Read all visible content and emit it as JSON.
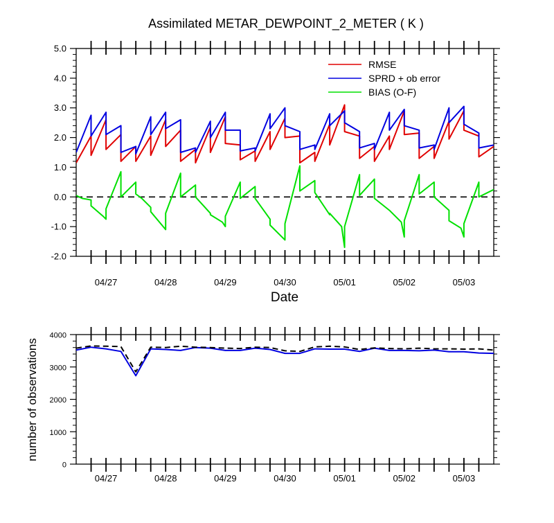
{
  "chart_data": [
    {
      "type": "line",
      "title": "Assimilated METAR_DEWPOINT_2_METER ( K )",
      "xlabel": "Date",
      "ylabel": "",
      "x_tick_labels": [
        "04/27",
        "04/28",
        "04/29",
        "04/30",
        "05/01",
        "05/02",
        "05/03"
      ],
      "x_tick_days": [
        1,
        2,
        3,
        4,
        5,
        6,
        7
      ],
      "xlim_days": [
        0.0,
        7.0
      ],
      "ylim": [
        -2.0,
        5.0
      ],
      "y_tick_labels": [
        "-2.0",
        "-1.0",
        "0.0",
        "1.0",
        "2.0",
        "3.0",
        "4.0",
        "5.0"
      ],
      "zero_reference_line": "dashed black at 0.0",
      "legend": {
        "placement": "top-right"
      },
      "series": [
        {
          "name": "RMSE",
          "color": "#e00000",
          "x_days": [
            0.0,
            0.25,
            0.25,
            0.5,
            0.5,
            0.75,
            0.75,
            1.0,
            1.0,
            1.25,
            1.25,
            1.5,
            1.5,
            1.75,
            1.75,
            2.0,
            2.0,
            2.25,
            2.25,
            2.5,
            2.5,
            2.75,
            2.75,
            3.0,
            3.0,
            3.25,
            3.25,
            3.5,
            3.5,
            3.75,
            3.75,
            4.0,
            4.0,
            4.25,
            4.25,
            4.5,
            4.5,
            4.75,
            4.75,
            5.0,
            5.0,
            5.25,
            5.25,
            5.5,
            5.5,
            5.75,
            5.75,
            6.0,
            6.0,
            6.25,
            6.25,
            6.5,
            6.5,
            6.75,
            6.75,
            7.0
          ],
          "values": [
            1.15,
            2.05,
            1.4,
            2.6,
            1.6,
            2.1,
            1.2,
            1.7,
            1.2,
            2.05,
            1.4,
            2.6,
            1.7,
            2.25,
            1.2,
            1.6,
            1.15,
            2.35,
            1.5,
            2.7,
            1.8,
            1.75,
            1.25,
            1.55,
            1.2,
            2.2,
            1.6,
            2.65,
            2.0,
            2.05,
            1.15,
            1.5,
            1.2,
            2.45,
            1.75,
            3.1,
            2.2,
            2.05,
            1.3,
            1.7,
            1.2,
            2.05,
            1.6,
            2.9,
            2.1,
            2.15,
            1.3,
            1.7,
            1.3,
            2.55,
            1.95,
            2.9,
            2.25,
            2.05,
            1.35,
            1.7
          ]
        },
        {
          "name": "SPRD + ob error",
          "color": "#0000e0",
          "x_days": [
            0.0,
            0.25,
            0.25,
            0.5,
            0.5,
            0.75,
            0.75,
            1.0,
            1.0,
            1.25,
            1.25,
            1.5,
            1.5,
            1.75,
            1.75,
            2.0,
            2.0,
            2.25,
            2.25,
            2.5,
            2.5,
            2.75,
            2.75,
            3.0,
            3.0,
            3.25,
            3.25,
            3.5,
            3.5,
            3.75,
            3.75,
            4.0,
            4.0,
            4.25,
            4.25,
            4.5,
            4.5,
            4.75,
            4.75,
            5.0,
            5.0,
            5.25,
            5.25,
            5.5,
            5.5,
            5.75,
            5.75,
            6.0,
            6.0,
            6.25,
            6.25,
            6.5,
            6.5,
            6.75,
            6.75,
            7.0
          ],
          "values": [
            1.5,
            2.75,
            2.05,
            2.85,
            2.1,
            2.4,
            1.5,
            1.7,
            1.45,
            2.7,
            2.1,
            2.85,
            2.3,
            2.6,
            1.5,
            1.65,
            1.5,
            2.55,
            2.0,
            2.85,
            2.25,
            2.25,
            1.55,
            1.65,
            1.55,
            2.8,
            2.3,
            3.0,
            2.4,
            2.2,
            1.6,
            1.75,
            1.6,
            2.8,
            2.4,
            2.9,
            2.5,
            2.2,
            1.65,
            1.8,
            1.6,
            2.85,
            2.25,
            2.95,
            2.4,
            2.25,
            1.65,
            1.75,
            1.6,
            3.0,
            2.5,
            3.05,
            2.45,
            2.15,
            1.65,
            1.75
          ]
        },
        {
          "name": "BIAS (O-F)",
          "color": "#00e000",
          "x_days": [
            0.0,
            0.1,
            0.25,
            0.25,
            0.45,
            0.5,
            0.5,
            0.75,
            0.75,
            1.0,
            1.0,
            1.1,
            1.25,
            1.25,
            1.5,
            1.5,
            1.75,
            1.75,
            2.0,
            2.0,
            2.25,
            2.25,
            2.45,
            2.5,
            2.5,
            2.75,
            2.75,
            3.0,
            3.0,
            3.25,
            3.25,
            3.5,
            3.5,
            3.75,
            3.75,
            4.0,
            4.0,
            4.25,
            4.25,
            4.45,
            4.5,
            4.5,
            4.75,
            4.75,
            5.0,
            5.0,
            5.25,
            5.25,
            5.45,
            5.5,
            5.5,
            5.75,
            5.75,
            6.0,
            6.0,
            6.25,
            6.25,
            6.45,
            6.5,
            6.5,
            6.75,
            6.75,
            7.0
          ],
          "values": [
            0.05,
            -0.05,
            -0.1,
            -0.3,
            -0.65,
            -0.75,
            -0.4,
            0.85,
            0.0,
            0.5,
            0.1,
            -0.05,
            -0.35,
            -0.5,
            -1.1,
            -0.55,
            0.8,
            0.0,
            0.4,
            0.0,
            -0.55,
            -0.6,
            -0.85,
            -1.0,
            -0.65,
            0.5,
            -0.05,
            0.35,
            -0.05,
            -0.75,
            -0.95,
            -1.45,
            -0.9,
            1.05,
            0.2,
            0.55,
            0.15,
            -0.6,
            -0.55,
            -1.0,
            -1.7,
            -1.0,
            0.75,
            0.05,
            0.6,
            -0.05,
            -0.45,
            -0.45,
            -0.85,
            -1.35,
            -0.8,
            0.75,
            0.1,
            0.5,
            0.0,
            -0.45,
            -0.8,
            -1.05,
            -1.35,
            -0.9,
            0.5,
            0.0,
            0.25
          ]
        }
      ]
    },
    {
      "type": "line",
      "title": "",
      "xlabel": "",
      "ylabel": "number of observations",
      "x_tick_labels": [
        "04/27",
        "04/28",
        "04/29",
        "04/30",
        "05/01",
        "05/02",
        "05/03"
      ],
      "x_tick_days": [
        1,
        2,
        3,
        4,
        5,
        6,
        7
      ],
      "xlim_days": [
        0.0,
        7.0
      ],
      "ylim": [
        0,
        4000
      ],
      "y_tick_labels": [
        "0",
        "1000",
        "2000",
        "3000",
        "4000"
      ],
      "series": [
        {
          "color": "#0000e0",
          "line_style": "solid",
          "x_days": [
            0.0,
            0.25,
            0.5,
            0.75,
            1.0,
            1.25,
            1.5,
            1.75,
            2.0,
            2.25,
            2.5,
            2.75,
            3.0,
            3.25,
            3.5,
            3.75,
            4.0,
            4.25,
            4.5,
            4.75,
            5.0,
            5.25,
            5.5,
            5.75,
            6.0,
            6.25,
            6.5,
            6.75,
            7.0
          ],
          "values": [
            3520,
            3610,
            3560,
            3480,
            2730,
            3560,
            3540,
            3510,
            3600,
            3580,
            3510,
            3510,
            3580,
            3540,
            3420,
            3420,
            3560,
            3550,
            3550,
            3480,
            3580,
            3510,
            3510,
            3500,
            3520,
            3470,
            3470,
            3430,
            3420
          ]
        },
        {
          "color": "#000000",
          "line_style": "dashed",
          "x_days": [
            0.0,
            0.25,
            0.5,
            0.75,
            1.0,
            1.25,
            1.5,
            1.75,
            2.0,
            2.25,
            2.5,
            2.75,
            3.0,
            3.25,
            3.5,
            3.75,
            4.0,
            4.25,
            4.5,
            4.75,
            5.0,
            5.25,
            5.5,
            5.75,
            6.0,
            6.25,
            6.5,
            6.75,
            7.0
          ],
          "values": [
            3580,
            3650,
            3640,
            3630,
            2850,
            3610,
            3600,
            3640,
            3610,
            3600,
            3580,
            3570,
            3610,
            3600,
            3500,
            3480,
            3620,
            3640,
            3620,
            3540,
            3590,
            3570,
            3560,
            3580,
            3560,
            3560,
            3550,
            3560,
            3520
          ]
        }
      ]
    }
  ]
}
